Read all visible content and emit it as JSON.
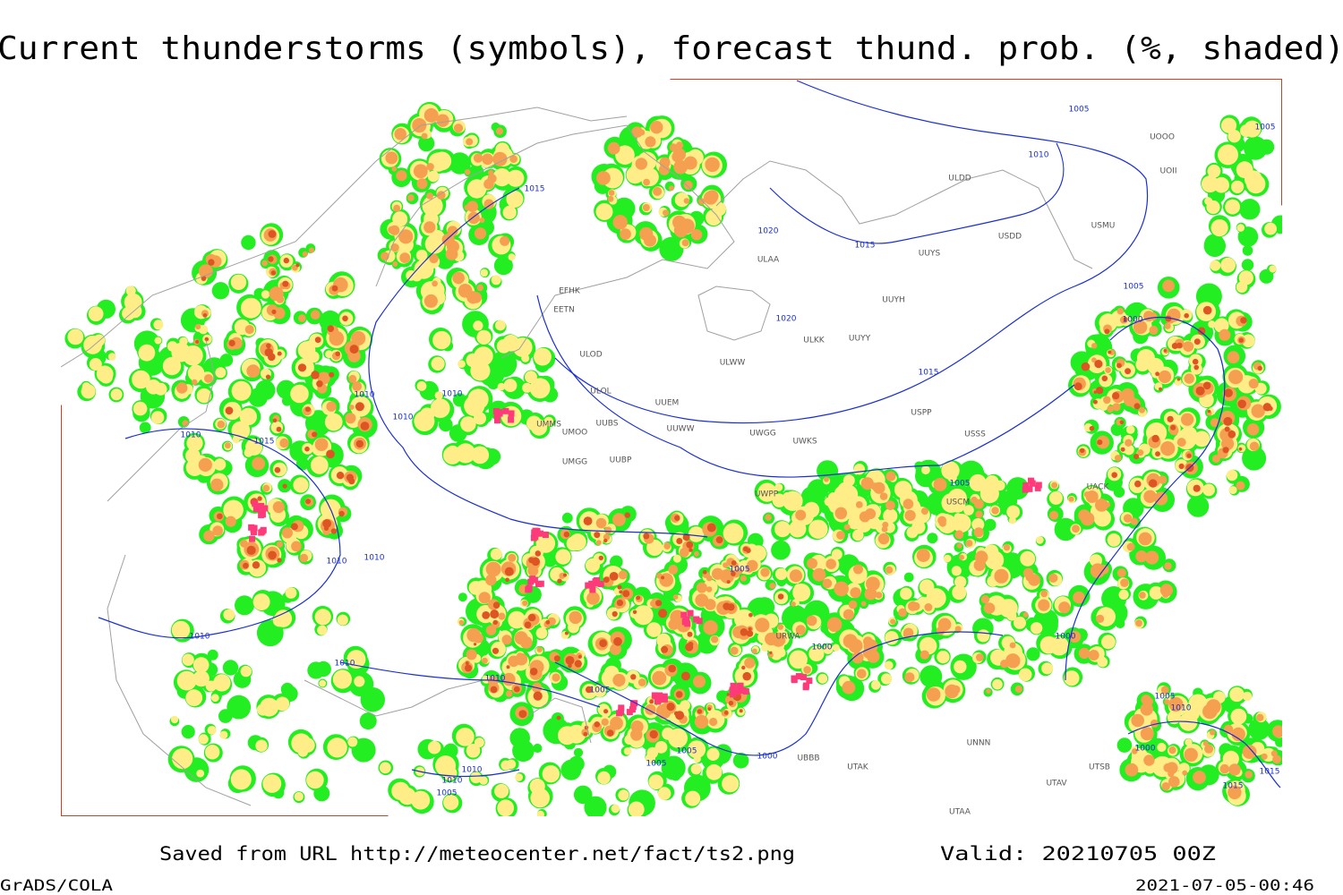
{
  "header": {
    "title": "Current thunderstorms (symbols), forecast thund. prob. (%, shaded)"
  },
  "map": {
    "isobar_labels": [
      1005,
      1005,
      1010,
      1015,
      1020,
      1015,
      1020,
      1015,
      1010,
      1010,
      1010,
      1010,
      1015,
      1005,
      1005,
      1010,
      1010,
      1000,
      1000,
      1010,
      1010,
      1010,
      1005,
      1005,
      1000,
      1005,
      1010,
      1010,
      1005,
      1000,
      1005,
      1005,
      1010,
      1000,
      1015,
      1015
    ],
    "station_labels": [
      "ULDD",
      "UUYS",
      "USDD",
      "USMU",
      "ULAA",
      "UUYH",
      "ULKK",
      "UUYY",
      "ULWW",
      "UUEM",
      "UWGG",
      "UWKS",
      "USPP",
      "USSS",
      "UOOO",
      "UOII",
      "EFHK",
      "EETN",
      "ULOD",
      "ULOL",
      "UMMS",
      "UMOO",
      "UUBS",
      "UUWW",
      "UMGG",
      "UUBP",
      "UWPP",
      "USCM",
      "UACK",
      "URWA",
      "UBBB",
      "UTAK",
      "UTAV",
      "UTAA",
      "UTSB",
      "UNNN"
    ]
  },
  "footer": {
    "source": "Saved from URL http://meteocenter.net/fact/ts2.png",
    "valid": "Valid: 20210705 00Z",
    "software": "GrADS/COLA",
    "timestamp": "2021-07-05-00:46"
  }
}
